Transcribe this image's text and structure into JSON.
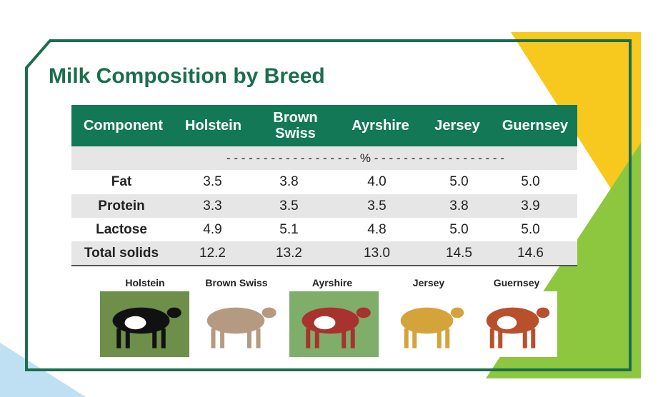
{
  "header": {
    "title": "Milk Composition by Breed"
  },
  "table": {
    "columns": [
      "Component",
      "Holstein",
      "Brown Swiss",
      "Ayrshire",
      "Jersey",
      "Guernsey"
    ],
    "unit": "- - - - - - - - - - - - - - - - - - % - - - - - - - - - - - - - - - - - -",
    "rows": [
      [
        "Fat",
        "3.5",
        "3.8",
        "4.0",
        "5.0",
        "5.0"
      ],
      [
        "Protein",
        "3.3",
        "3.5",
        "3.5",
        "3.8",
        "3.9"
      ],
      [
        "Lactose",
        "4.9",
        "5.1",
        "4.8",
        "5.0",
        "5.0"
      ],
      [
        "Total solids",
        "12.2",
        "13.2",
        "13.0",
        "14.5",
        "14.6"
      ]
    ]
  },
  "images": [
    {
      "caption": "Holstein"
    },
    {
      "caption": "Brown Swiss"
    },
    {
      "caption": "Ayrshire"
    },
    {
      "caption": "Jersey"
    },
    {
      "caption": "Guernsey"
    }
  ]
}
